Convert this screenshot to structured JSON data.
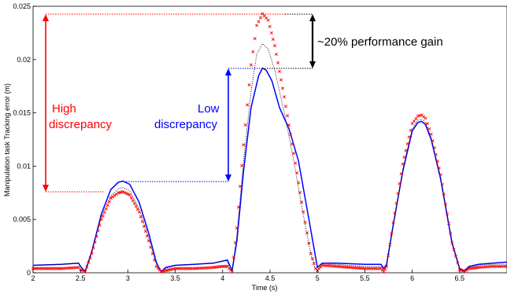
{
  "chart_data": {
    "type": "line",
    "xlabel": "Time (s)",
    "ylabel": "Manipulation task Tracking error (m)",
    "xlim": [
      2,
      7
    ],
    "ylim": [
      0,
      0.025
    ],
    "x_ticks": [
      "2",
      "2.5",
      "3",
      "3.5",
      "4",
      "4.5",
      "5",
      "5.5",
      "6",
      "6.5"
    ],
    "y_ticks": [
      "0",
      "0.005",
      "0.01",
      "0.015",
      "0.02",
      "0.025"
    ],
    "grid": false,
    "series": [
      {
        "style": "solid",
        "color": "#0000ff",
        "x": [
          2.0,
          2.3,
          2.48,
          2.5,
          2.55,
          2.62,
          2.72,
          2.82,
          2.9,
          2.95,
          3.02,
          3.12,
          3.22,
          3.3,
          3.35,
          3.4,
          3.5,
          3.7,
          3.9,
          4.0,
          4.05,
          4.07,
          4.1,
          4.15,
          4.22,
          4.3,
          4.38,
          4.42,
          4.46,
          4.52,
          4.6,
          4.7,
          4.8,
          4.9,
          4.97,
          5.0,
          5.05,
          5.2,
          5.5,
          5.67,
          5.7,
          5.73,
          5.8,
          5.9,
          6.0,
          6.06,
          6.1,
          6.14,
          6.2,
          6.3,
          6.42,
          6.5,
          6.55,
          6.6,
          6.7,
          6.85,
          7.0
        ],
        "y": [
          0.0007,
          0.0008,
          0.0009,
          0.0006,
          0.0001,
          0.002,
          0.0055,
          0.0078,
          0.0085,
          0.0086,
          0.0083,
          0.0066,
          0.0037,
          0.001,
          0.0001,
          0.0005,
          0.0007,
          0.0008,
          0.0009,
          0.0011,
          0.0012,
          0.0008,
          0.0002,
          0.003,
          0.0095,
          0.0155,
          0.0185,
          0.0192,
          0.019,
          0.018,
          0.0155,
          0.0135,
          0.0105,
          0.0055,
          0.002,
          0.0005,
          0.0009,
          0.0009,
          0.0008,
          0.0008,
          0.0004,
          0.0008,
          0.0045,
          0.0095,
          0.0133,
          0.0141,
          0.0142,
          0.0139,
          0.0125,
          0.0088,
          0.0028,
          0.0004,
          0.0002,
          0.0006,
          0.0008,
          0.0009,
          0.001
        ]
      },
      {
        "style": "dotted",
        "color": "#000000",
        "x": [
          2.0,
          2.3,
          2.48,
          2.5,
          2.55,
          2.62,
          2.72,
          2.82,
          2.9,
          2.95,
          3.02,
          3.12,
          3.22,
          3.3,
          3.35,
          3.4,
          3.5,
          3.7,
          3.9,
          4.0,
          4.05,
          4.07,
          4.1,
          4.15,
          4.22,
          4.3,
          4.36,
          4.42,
          4.48,
          4.55,
          4.65,
          4.75,
          4.85,
          4.93,
          4.98,
          5.0,
          5.05,
          5.2,
          5.5,
          5.67,
          5.7,
          5.73,
          5.8,
          5.9,
          6.0,
          6.06,
          6.1,
          6.14,
          6.2,
          6.3,
          6.42,
          6.5,
          6.55,
          6.6,
          6.7,
          6.85,
          7.0
        ],
        "y": [
          0.0007,
          0.0008,
          0.0009,
          0.0006,
          0.0001,
          0.0019,
          0.0052,
          0.0072,
          0.0079,
          0.008,
          0.0077,
          0.006,
          0.0032,
          0.0008,
          0.0001,
          0.0004,
          0.0007,
          0.0008,
          0.0009,
          0.0011,
          0.0011,
          0.0006,
          0.0002,
          0.0035,
          0.0105,
          0.017,
          0.0205,
          0.0215,
          0.021,
          0.019,
          0.015,
          0.0105,
          0.0055,
          0.0018,
          0.0004,
          0.0003,
          0.0008,
          0.0008,
          0.0006,
          0.0006,
          0.0002,
          0.0007,
          0.0045,
          0.0097,
          0.0135,
          0.0143,
          0.0144,
          0.0141,
          0.0127,
          0.009,
          0.0028,
          0.0004,
          0.0002,
          0.0005,
          0.0007,
          0.0008,
          0.0008
        ]
      },
      {
        "style": "markers-x",
        "color": "#ff0000",
        "x": [
          2.0,
          2.3,
          2.48,
          2.5,
          2.55,
          2.62,
          2.72,
          2.82,
          2.9,
          2.95,
          3.02,
          3.12,
          3.22,
          3.3,
          3.35,
          3.4,
          3.5,
          3.7,
          3.9,
          4.0,
          4.05,
          4.07,
          4.1,
          4.15,
          4.22,
          4.3,
          4.36,
          4.42,
          4.48,
          4.55,
          4.65,
          4.75,
          4.85,
          4.93,
          4.98,
          5.0,
          5.05,
          5.2,
          5.5,
          5.67,
          5.7,
          5.73,
          5.8,
          5.9,
          6.0,
          6.06,
          6.1,
          6.14,
          6.2,
          6.3,
          6.42,
          6.5,
          6.55,
          6.6,
          6.7,
          6.85,
          7.0
        ],
        "y": [
          0.0004,
          0.0004,
          0.0005,
          0.0003,
          0.0001,
          0.0018,
          0.005,
          0.007,
          0.0075,
          0.0076,
          0.0073,
          0.0057,
          0.003,
          0.0006,
          0.0001,
          0.0002,
          0.0004,
          0.0004,
          0.0005,
          0.0006,
          0.0006,
          0.0004,
          0.0001,
          0.0042,
          0.012,
          0.0195,
          0.0232,
          0.0243,
          0.0237,
          0.0213,
          0.0165,
          0.0112,
          0.0057,
          0.0018,
          0.0004,
          0.0002,
          0.0007,
          0.0006,
          0.0004,
          0.0004,
          0.0001,
          0.0006,
          0.0047,
          0.0102,
          0.014,
          0.0147,
          0.0148,
          0.0145,
          0.013,
          0.0092,
          0.0028,
          0.0003,
          0.0001,
          0.0004,
          0.0005,
          0.0006,
          0.0006
        ],
        "marker": "x"
      }
    ],
    "annotations": {
      "high_label": [
        "High",
        "discrepancy"
      ],
      "low_label": [
        "Low",
        "discrepancy"
      ],
      "gain_label": "~20% performance gain",
      "high_color": "#ff0000",
      "low_color": "#0000ff",
      "gain_color": "#000000"
    }
  }
}
